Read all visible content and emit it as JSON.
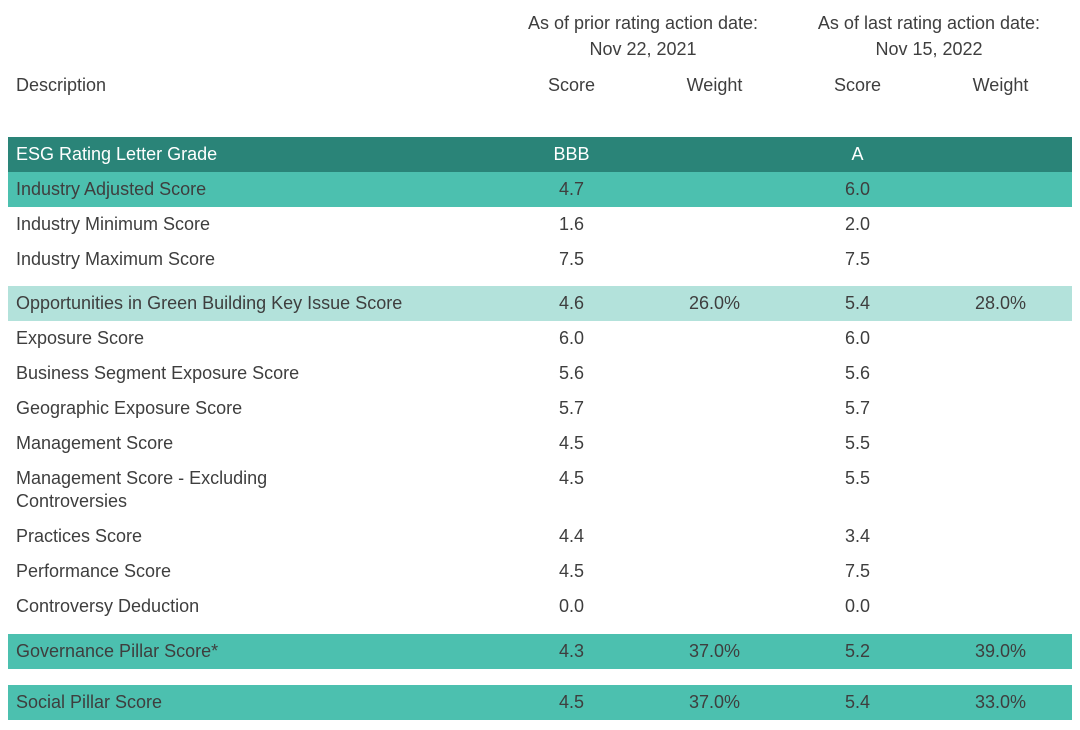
{
  "colors": {
    "dark_teal": "#2a8478",
    "medium_teal": "#4cc0af",
    "light_teal": "#b3e2db",
    "text_dark": "#3e3e3e",
    "text_white": "#ffffff"
  },
  "chart_data": {
    "type": "table",
    "column_groups": [
      {
        "line1": "As of prior rating action date:",
        "line2": "Nov 22, 2021"
      },
      {
        "line1": "As of last rating action date:",
        "line2": "Nov 15, 2022"
      }
    ],
    "columns": [
      "Description",
      "Score",
      "Weight",
      "Score",
      "Weight"
    ],
    "row_groups": [
      {
        "rows": [
          {
            "style": "dark",
            "cells": [
              "ESG Rating Letter Grade",
              "BBB",
              "",
              "A",
              ""
            ]
          },
          {
            "style": "medium",
            "cells": [
              "Industry Adjusted Score",
              "4.7",
              "",
              "6.0",
              ""
            ]
          },
          {
            "style": "plain",
            "cells": [
              "Industry Minimum Score",
              "1.6",
              "",
              "2.0",
              ""
            ]
          },
          {
            "style": "plain",
            "cells": [
              "Industry Maximum Score",
              "7.5",
              "",
              "7.5",
              ""
            ]
          }
        ]
      },
      {
        "rows": [
          {
            "style": "light",
            "cells": [
              "Opportunities in Green Building Key Issue Score",
              "4.6",
              "26.0%",
              "5.4",
              "28.0%"
            ]
          },
          {
            "style": "plain",
            "cells": [
              "Exposure Score",
              "6.0",
              "",
              "6.0",
              ""
            ]
          },
          {
            "style": "plain",
            "cells": [
              "Business Segment Exposure Score",
              "5.6",
              "",
              "5.6",
              ""
            ]
          },
          {
            "style": "plain",
            "cells": [
              "Geographic Exposure Score",
              "5.7",
              "",
              "5.7",
              ""
            ]
          },
          {
            "style": "plain",
            "cells": [
              "Management Score",
              "4.5",
              "",
              "5.5",
              ""
            ]
          },
          {
            "style": "plain",
            "cells": [
              "Management Score - Excluding\nControversies",
              "4.5",
              "",
              "5.5",
              ""
            ]
          },
          {
            "style": "plain",
            "cells": [
              "Practices Score",
              "4.4",
              "",
              "3.4",
              ""
            ]
          },
          {
            "style": "plain",
            "cells": [
              "Performance Score",
              "4.5",
              "",
              "7.5",
              ""
            ]
          },
          {
            "style": "plain",
            "cells": [
              "Controversy Deduction",
              "0.0",
              "",
              "0.0",
              ""
            ]
          }
        ]
      },
      {
        "rows": [
          {
            "style": "medium",
            "cells": [
              "Governance Pillar Score*",
              "4.3",
              "37.0%",
              "5.2",
              "39.0%"
            ]
          }
        ]
      },
      {
        "rows": [
          {
            "style": "medium",
            "cells": [
              "Social Pillar Score",
              "4.5",
              "37.0%",
              "5.4",
              "33.0%"
            ]
          }
        ]
      }
    ]
  }
}
